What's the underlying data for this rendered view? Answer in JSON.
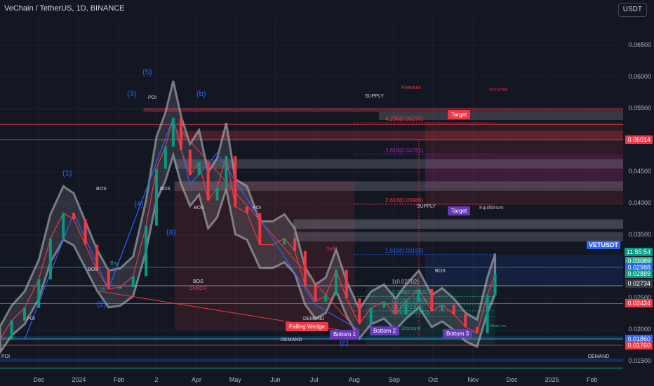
{
  "header": {
    "title": "VeChain / TetherUS, 1D, BINANCE",
    "currency_button": "USDT"
  },
  "chart_data": {
    "type": "line",
    "symbol": "VETUSDT",
    "title": "VeChain / TetherUS, 1D, BINANCE",
    "x_tick_labels": [
      "Dec",
      "2024",
      "Feb",
      "2",
      "Apr",
      "May",
      "Jun",
      "Jul",
      "Aug",
      "Sep",
      "Oct",
      "Nov",
      "Dec",
      "2025",
      "Feb"
    ],
    "y_tick_labels": [
      "0.06500",
      "0.06000",
      "0.05500",
      "0.05000",
      "0.04500",
      "0.04000",
      "0.03500",
      "0.03000",
      "0.02500",
      "0.02000",
      "0.01500"
    ],
    "ylim": [
      0.0136,
      0.0695
    ],
    "x": [
      "2023-11-01",
      "2023-11-10",
      "2023-11-20",
      "2023-12-01",
      "2023-12-10",
      "2023-12-20",
      "2023-12-28",
      "2024-01-06",
      "2024-01-15",
      "2024-01-24",
      "2024-02-02",
      "2024-02-12",
      "2024-02-22",
      "2024-03-01",
      "2024-03-08",
      "2024-03-14",
      "2024-03-20",
      "2024-03-27",
      "2024-04-03",
      "2024-04-10",
      "2024-04-17",
      "2024-04-24",
      "2024-05-01",
      "2024-05-10",
      "2024-05-20",
      "2024-05-30",
      "2024-06-08",
      "2024-06-16",
      "2024-06-24",
      "2024-07-02",
      "2024-07-10",
      "2024-07-18",
      "2024-07-26",
      "2024-08-05",
      "2024-08-14",
      "2024-08-24",
      "2024-09-02",
      "2024-09-10",
      "2024-09-20",
      "2024-09-30",
      "2024-10-08",
      "2024-10-17",
      "2024-10-26",
      "2024-11-04",
      "2024-11-12",
      "2024-11-18"
    ],
    "series": [
      {
        "name": "VETUSDT",
        "values": [
          0.0185,
          0.0215,
          0.0235,
          0.028,
          0.0345,
          0.0385,
          0.0375,
          0.0335,
          0.0295,
          0.0265,
          0.0268,
          0.0285,
          0.0365,
          0.0455,
          0.049,
          0.0535,
          0.0485,
          0.0445,
          0.0465,
          0.0405,
          0.0425,
          0.0475,
          0.0395,
          0.0385,
          0.0335,
          0.0335,
          0.0345,
          0.0325,
          0.027,
          0.0245,
          0.0255,
          0.0295,
          0.025,
          0.021,
          0.0235,
          0.0245,
          0.0225,
          0.0245,
          0.0265,
          0.023,
          0.024,
          0.0225,
          0.0205,
          0.0195,
          0.0255,
          0.0289
        ]
      }
    ],
    "current_price": "0.02889",
    "countdown": "11:55:54",
    "price_tags": [
      {
        "value": "0.05014",
        "color": "#f23645"
      },
      {
        "value": "0.03089",
        "color": "#22ab94"
      },
      {
        "value": "0.02988",
        "color": "#2962ff"
      },
      {
        "value": "0.02889",
        "color": "#089981"
      },
      {
        "value": "0.02734",
        "color": "#363a45"
      },
      {
        "value": "0.02424",
        "color": "#f23645"
      },
      {
        "value": "0.01860",
        "color": "#2962ff"
      },
      {
        "value": "0.01760",
        "color": "#f23645"
      }
    ],
    "fib_levels": [
      {
        "label": "4.236(0.05275)",
        "value": 0.05275,
        "color": "#f23645"
      },
      {
        "label": "3.618(0.04781)",
        "value": 0.04781,
        "color": "#9c27b0"
      },
      {
        "label": "2.618(0.03988)",
        "value": 0.03988,
        "color": "#f23645"
      },
      {
        "label": "1.618(0.03193)",
        "value": 0.03193,
        "color": "#2962ff"
      },
      {
        "label": "1(0.02702)",
        "value": 0.02702,
        "color": "#b2b5be"
      },
      {
        "label": "0.786(0.02532)",
        "value": 0.02532,
        "color": "#22ab94"
      },
      {
        "label": "0.618(0.02398)",
        "value": 0.02398,
        "color": "#22ab94"
      },
      {
        "label": "0.5(0.02304)",
        "value": 0.02304,
        "color": "#22ab94"
      },
      {
        "label": "0.382(0.02211)",
        "value": 0.02211,
        "color": "#22ab94"
      }
    ],
    "wave_labels": {
      "w1": "(1)",
      "w2": "(2)",
      "w3": "(3)",
      "w4": "(4)",
      "w5": "(5)",
      "wa": "(a)",
      "wb": "(b)",
      "wc": "(c)"
    },
    "zone_labels": {
      "supply_top": "SUPPLY",
      "premium": "Premium",
      "strong_high": "Strong High",
      "supply_mid": "SUPPLY",
      "equilibrium": "Equilibrium",
      "discount": "Discount",
      "weak_low": "Weak Low",
      "demand1": "DEMAND",
      "demand2": "DEMAND",
      "demand3": "DEMAND",
      "poi1": "POI",
      "poi2": "POI",
      "poi3": "POI",
      "poi4": "POI",
      "choch": "CHoCH",
      "hl": "HL",
      "bos1": "BOS",
      "bos2": "BOS",
      "bos3": "BOS",
      "bos4": "BOS",
      "bos5": "BOS",
      "bos6": "BOS"
    },
    "annotations": {
      "target1": "Target",
      "target2": "Target",
      "falling_wedge": "Falling Wedge",
      "bottom1": "Bottom 1",
      "bottom2": "Bottom 2",
      "bottom3": "Bottom 3",
      "buy": "Buy",
      "sell": "Sell"
    },
    "colors": {
      "background": "#131722",
      "up": "#089981",
      "down": "#f23645",
      "band": "#9598a1",
      "wave_line": "#2962ff",
      "wedge": "#f23645"
    }
  }
}
